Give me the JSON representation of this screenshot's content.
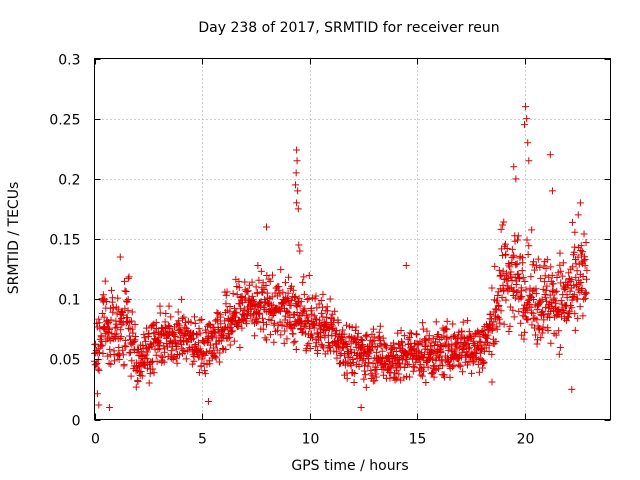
{
  "chart_data": {
    "type": "scatter",
    "title": "Day 238 of 2017, SRMTID for receiver reun",
    "xlabel": "GPS time / hours",
    "ylabel": "SRMTID / TECUs",
    "xlim": [
      0,
      24
    ],
    "ylim": [
      0,
      0.3
    ],
    "xticks": [
      0,
      5,
      10,
      15,
      20
    ],
    "xtick_labels": [
      "0",
      "5",
      "10",
      "15",
      "20"
    ],
    "yticks": [
      0,
      0.05,
      0.1,
      0.15,
      0.2,
      0.25,
      0.3
    ],
    "ytick_labels": [
      "0",
      "0.05",
      "0.1",
      "0.15",
      "0.2",
      "0.25",
      "0.3"
    ],
    "grid": true,
    "marker": "+",
    "marker_color": "#e00000",
    "data_range_hours": [
      0,
      22.9
    ],
    "series": [
      {
        "name": "SRMTID",
        "profile_hours": [
          0,
          0.5,
          1,
          1.5,
          2,
          3,
          4,
          5,
          6,
          7,
          8,
          9,
          10,
          11,
          12,
          13,
          14,
          15,
          16,
          17,
          18,
          18.5,
          19,
          19.5,
          20,
          20.5,
          21,
          21.5,
          22,
          22.9
        ],
        "profile_mean": [
          0.05,
          0.08,
          0.07,
          0.08,
          0.05,
          0.065,
          0.07,
          0.06,
          0.075,
          0.095,
          0.095,
          0.09,
          0.08,
          0.075,
          0.055,
          0.055,
          0.05,
          0.055,
          0.055,
          0.06,
          0.06,
          0.075,
          0.12,
          0.12,
          0.11,
          0.1,
          0.1,
          0.1,
          0.1,
          0.12
        ],
        "profile_spread": [
          0.025,
          0.03,
          0.03,
          0.03,
          0.02,
          0.02,
          0.02,
          0.02,
          0.025,
          0.025,
          0.025,
          0.025,
          0.025,
          0.022,
          0.02,
          0.02,
          0.02,
          0.02,
          0.02,
          0.02,
          0.02,
          0.03,
          0.04,
          0.04,
          0.035,
          0.035,
          0.035,
          0.035,
          0.035,
          0.04
        ],
        "sample_count": 1800,
        "spikes": [
          {
            "x": 9.4,
            "y": 0.224
          },
          {
            "x": 9.42,
            "y": 0.215
          },
          {
            "x": 9.38,
            "y": 0.205
          },
          {
            "x": 9.35,
            "y": 0.195
          },
          {
            "x": 9.45,
            "y": 0.19
          },
          {
            "x": 9.4,
            "y": 0.18
          },
          {
            "x": 9.48,
            "y": 0.175
          },
          {
            "x": 9.5,
            "y": 0.145
          },
          {
            "x": 9.55,
            "y": 0.14
          },
          {
            "x": 8,
            "y": 0.16
          },
          {
            "x": 14.5,
            "y": 0.128
          },
          {
            "x": 19.5,
            "y": 0.21
          },
          {
            "x": 19.6,
            "y": 0.2
          },
          {
            "x": 20.05,
            "y": 0.26
          },
          {
            "x": 20.1,
            "y": 0.25
          },
          {
            "x": 20.0,
            "y": 0.245
          },
          {
            "x": 20.15,
            "y": 0.23
          },
          {
            "x": 20.2,
            "y": 0.215
          },
          {
            "x": 21.2,
            "y": 0.22
          },
          {
            "x": 21.3,
            "y": 0.19
          },
          {
            "x": 22.6,
            "y": 0.18
          },
          {
            "x": 22.5,
            "y": 0.17
          },
          {
            "x": 1.2,
            "y": 0.135
          },
          {
            "x": 0.5,
            "y": 0.115
          },
          {
            "x": 0.7,
            "y": 0.01
          },
          {
            "x": 12.4,
            "y": 0.01
          },
          {
            "x": 0.2,
            "y": 0.012
          },
          {
            "x": 5.3,
            "y": 0.015
          },
          {
            "x": 22.2,
            "y": 0.025
          }
        ]
      }
    ]
  }
}
